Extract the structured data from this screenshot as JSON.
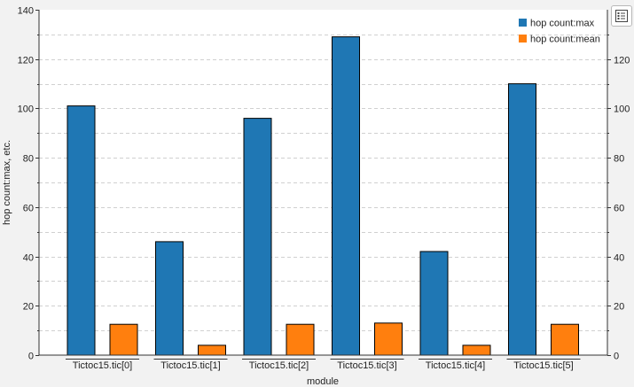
{
  "chart_data": {
    "type": "bar",
    "categories": [
      "Tictoc15.tic[0]",
      "Tictoc15.tic[1]",
      "Tictoc15.tic[2]",
      "Tictoc15.tic[3]",
      "Tictoc15.tic[4]",
      "Tictoc15.tic[5]"
    ],
    "series": [
      {
        "name": "hop count:max",
        "color": "#1f77b4",
        "values": [
          101,
          46,
          96,
          129,
          42,
          110
        ]
      },
      {
        "name": "hop count:mean",
        "color": "#ff7f0e",
        "values": [
          12.5,
          4,
          12.5,
          13,
          4,
          12.5
        ]
      }
    ],
    "title": "",
    "xlabel": "module",
    "ylabel": "hop count:max, etc.",
    "ylim": [
      0,
      140
    ],
    "yticks": [
      0,
      20,
      40,
      60,
      80,
      100,
      120,
      140
    ],
    "yticks_right": [
      0,
      20,
      40,
      60,
      80,
      100,
      120
    ],
    "grid": true,
    "legend_position": "top-right"
  },
  "toolbar": {
    "legend_toggle_icon": "list-icon"
  }
}
